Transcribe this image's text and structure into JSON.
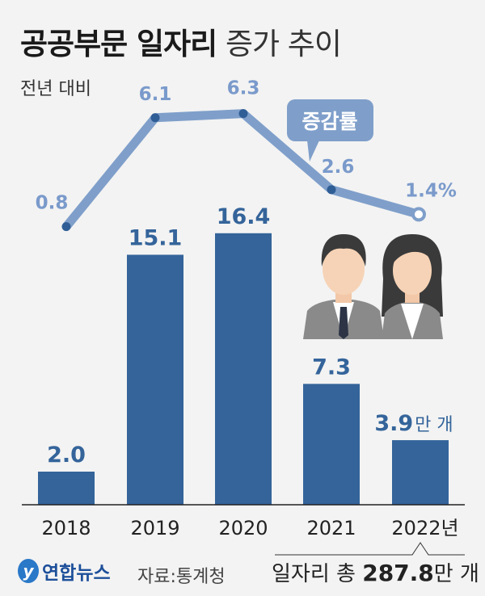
{
  "header": {
    "title_bold": "공공부문 일자리",
    "title_light": "증가 추이",
    "subtitle": "전년 대비"
  },
  "chart_data": {
    "type": "bar+line",
    "categories": [
      "2018",
      "2019",
      "2020",
      "2021",
      "2022년"
    ],
    "series": [
      {
        "name": "만 개",
        "type": "bar",
        "values": [
          2.0,
          15.1,
          16.4,
          7.3,
          3.9
        ],
        "labels": [
          "2.0",
          "15.1",
          "16.4",
          "7.3",
          "3.9"
        ],
        "last_label_unit": "만 개",
        "color": "#34649a"
      },
      {
        "name": "증감률",
        "type": "line",
        "values": [
          0.8,
          6.1,
          6.3,
          2.6,
          1.4
        ],
        "labels": [
          "0.8",
          "6.1",
          "6.3",
          "2.6",
          "1.4%"
        ],
        "color": "#7f9fca"
      }
    ],
    "legend_callout": "증감률",
    "grid": false
  },
  "footer": {
    "logo": "연합뉴스",
    "source": "자료:통계청",
    "total_prefix": "일자리 총",
    "total_value": "287.8",
    "total_unit": "만 개"
  },
  "colors": {
    "bar": "#34649a",
    "line": "#7f9fca",
    "line_label": "#7a9acb",
    "point": "#2f5d95",
    "background": "#f3f3f3"
  }
}
